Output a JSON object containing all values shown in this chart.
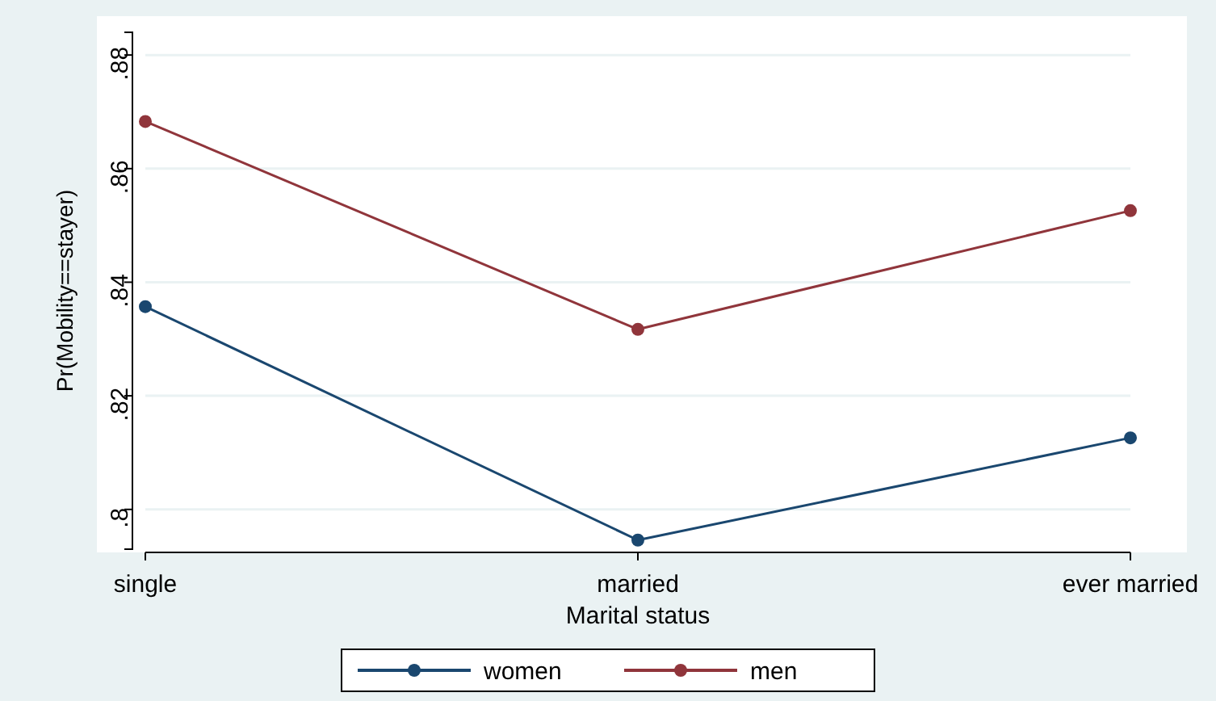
{
  "chart_data": {
    "type": "line",
    "xlabel": "Marital status",
    "ylabel": "Pr(Mobility==stayer)",
    "categories": [
      "single",
      "married",
      "ever married"
    ],
    "series": [
      {
        "name": "women",
        "color": "#1a476f",
        "values": [
          0.8357,
          0.7946,
          0.8126
        ]
      },
      {
        "name": "men",
        "color": "#90353b",
        "values": [
          0.8683,
          0.8317,
          0.8526
        ]
      }
    ],
    "ylim": [
      0.793,
      0.884
    ],
    "yticks": [
      {
        "value": 0.8,
        "label": ".8"
      },
      {
        "value": 0.82,
        "label": ".82"
      },
      {
        "value": 0.84,
        "label": ".84"
      },
      {
        "value": 0.86,
        "label": ".86"
      },
      {
        "value": 0.88,
        "label": ".88"
      }
    ],
    "grid": "y",
    "legend": "bottom",
    "marker": "circle",
    "line_style": "solid"
  }
}
